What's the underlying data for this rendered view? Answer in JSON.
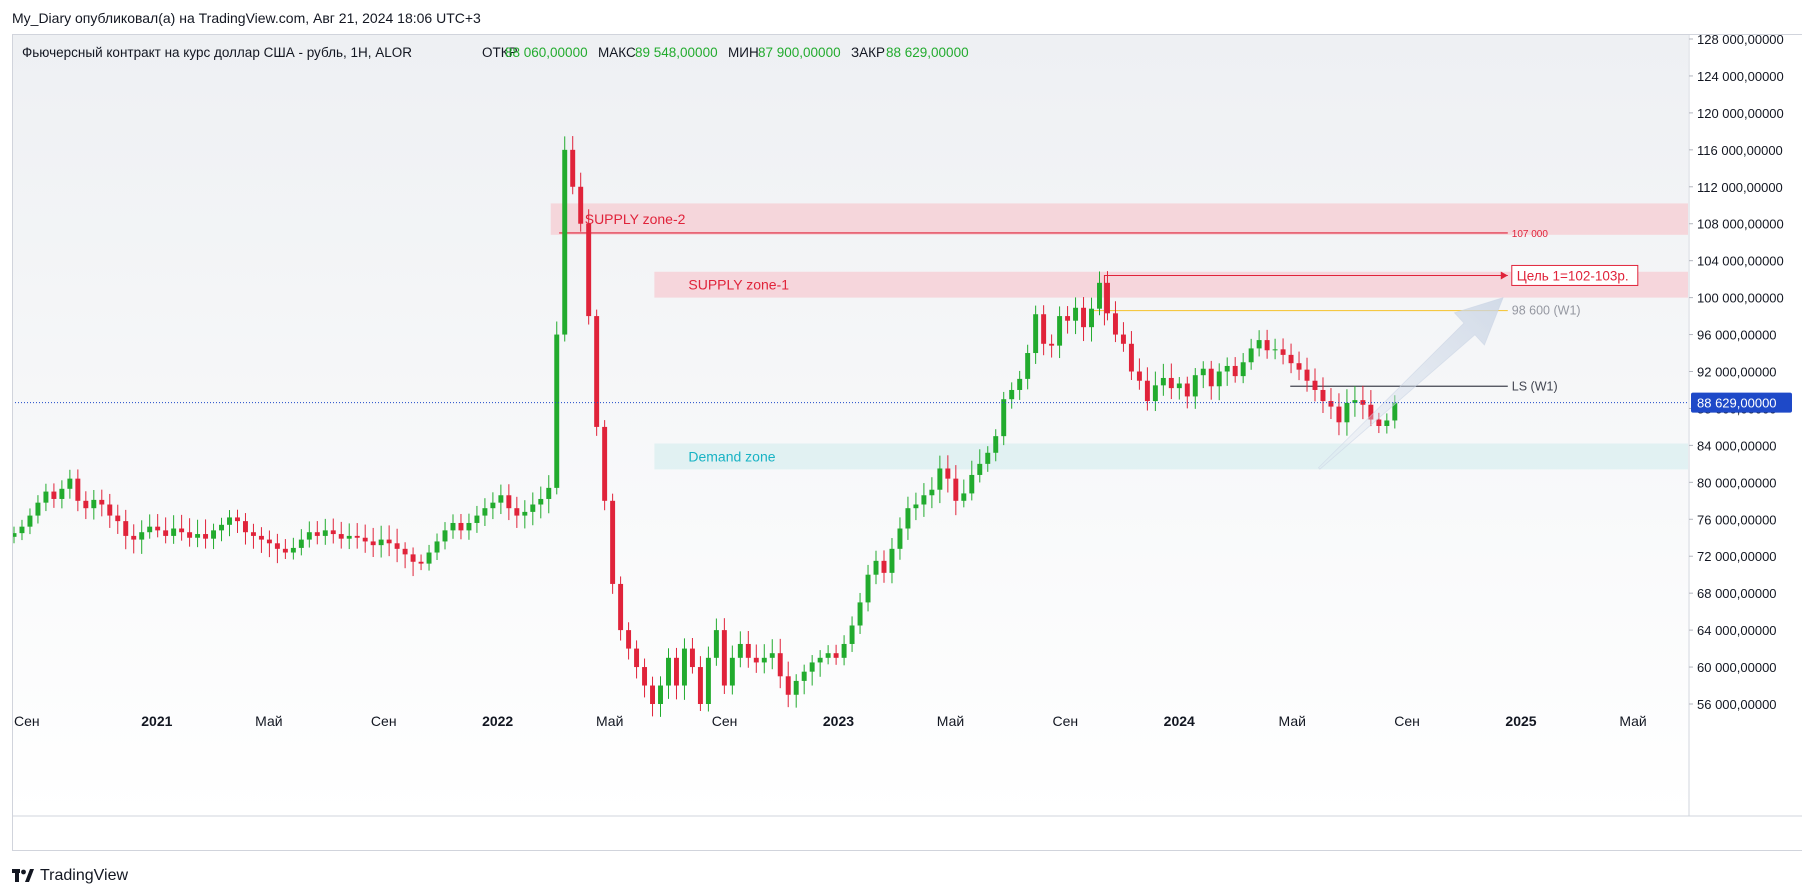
{
  "header": {
    "publisher_line": "My_Diary опубликовал(а) на TradingView.com, Авг 21, 2024 18:06 UTC+3"
  },
  "legend": {
    "symbol_text": "Фьючерсный контракт на курс доллар США - рубль, 1Н, ALOR",
    "open_label": "ОТКР",
    "open_value": "88 060,00000",
    "high_label": "МАКС",
    "high_value": "89 548,00000",
    "low_label": "МИН",
    "low_value": "87 900,00000",
    "close_label": "ЗАКР",
    "close_value": "88 629,00000"
  },
  "colors": {
    "up": "#22ab2e",
    "down": "#e0233a",
    "supply_zone": "#f6c9d0",
    "demand_zone": "#d7eef0",
    "supply_text": "#e0233a",
    "demand_text": "#18b3c4",
    "price_badge": "#1e49c8",
    "w1_line": "#f5c842",
    "ls_line": "#434651"
  },
  "branding": {
    "logo_text": "TradingView",
    "logo_icon": "tradingview-logo-icon"
  },
  "chart_data": {
    "type": "candlestick",
    "title": "",
    "y_axis": {
      "min": 52000,
      "max": 128000,
      "ticks": [
        {
          "v": 128000,
          "label": "128 000,00000"
        },
        {
          "v": 124000,
          "label": "124 000,00000"
        },
        {
          "v": 120000,
          "label": "120 000,00000"
        },
        {
          "v": 116000,
          "label": "116 000,00000"
        },
        {
          "v": 112000,
          "label": "112 000,00000"
        },
        {
          "v": 108000,
          "label": "108 000,00000"
        },
        {
          "v": 104000,
          "label": "104 000,00000"
        },
        {
          "v": 100000,
          "label": "100 000,00000"
        },
        {
          "v": 96000,
          "label": "96 000,00000"
        },
        {
          "v": 92000,
          "label": "92 000,00000"
        },
        {
          "v": 88000,
          "label": "88 000,00000"
        },
        {
          "v": 84000,
          "label": "84 000,00000"
        },
        {
          "v": 80000,
          "label": "80 000,00000"
        },
        {
          "v": 76000,
          "label": "76 000,00000"
        },
        {
          "v": 72000,
          "label": "72 000,00000"
        },
        {
          "v": 68000,
          "label": "68 000,00000"
        },
        {
          "v": 64000,
          "label": "64 000,00000"
        },
        {
          "v": 60000,
          "label": "60 000,00000"
        },
        {
          "v": 56000,
          "label": "56 000,00000"
        }
      ]
    },
    "x_axis": {
      "start": "2020-08-01",
      "end": "2025-07-01",
      "ticks": [
        {
          "date": "2020-09-01",
          "label": "Сен",
          "bold": false
        },
        {
          "date": "2021-01-01",
          "label": "2021",
          "bold": true
        },
        {
          "date": "2021-05-01",
          "label": "Май",
          "bold": false
        },
        {
          "date": "2021-09-01",
          "label": "Сен",
          "bold": false
        },
        {
          "date": "2022-01-01",
          "label": "2022",
          "bold": true
        },
        {
          "date": "2022-05-01",
          "label": "Май",
          "bold": false
        },
        {
          "date": "2022-09-01",
          "label": "Сен",
          "bold": false
        },
        {
          "date": "2023-01-01",
          "label": "2023",
          "bold": true
        },
        {
          "date": "2023-05-01",
          "label": "Май",
          "bold": false
        },
        {
          "date": "2023-09-01",
          "label": "Сен",
          "bold": false
        },
        {
          "date": "2024-01-01",
          "label": "2024",
          "bold": true
        },
        {
          "date": "2024-05-01",
          "label": "Май",
          "bold": false
        },
        {
          "date": "2024-09-01",
          "label": "Сен",
          "bold": false
        },
        {
          "date": "2025-01-01",
          "label": "2025",
          "bold": true
        },
        {
          "date": "2025-05-01",
          "label": "Май",
          "bold": false
        }
      ]
    },
    "current_price": {
      "value": 88629,
      "label": "88 629,00000"
    },
    "closes": [
      74500,
      75200,
      76400,
      77800,
      79000,
      78200,
      79300,
      80400,
      78000,
      77200,
      78100,
      77600,
      76400,
      75800,
      74200,
      73800,
      74600,
      75200,
      74800,
      74200,
      75000,
      74600,
      74000,
      74400,
      73900,
      74800,
      75400,
      76200,
      75800,
      74600,
      74200,
      73800,
      73400,
      72800,
      72400,
      72900,
      73800,
      74600,
      74200,
      74800,
      74400,
      73900,
      74200,
      74000,
      73600,
      73200,
      73800,
      73400,
      72800,
      72200,
      71400,
      71200,
      72400,
      73600,
      74800,
      75600,
      74800,
      75600,
      76400,
      77200,
      77800,
      78600,
      77200,
      76400,
      76800,
      77600,
      78200,
      79400,
      96000,
      116000,
      112000,
      108000,
      98000,
      86000,
      78000,
      69000,
      64000,
      62000,
      60000,
      58000,
      56000,
      58000,
      61000,
      58000,
      62000,
      60000,
      56000,
      61000,
      64000,
      58000,
      61000,
      62500,
      61000,
      60500,
      61000,
      61500,
      59000,
      57000,
      58500,
      59500,
      60500,
      61000,
      61500,
      61000,
      62500,
      64500,
      67000,
      70000,
      71500,
      70200,
      72800,
      75000,
      77200,
      77600,
      78600,
      79200,
      81500,
      80400,
      78000,
      78800,
      80800,
      82000,
      83200,
      85000,
      89000,
      90000,
      91200,
      94000,
      98200,
      95000,
      94800,
      98000,
      97500,
      98900,
      96800,
      98800,
      101600,
      98300,
      96000,
      95000,
      92000,
      91000,
      88800,
      90500,
      91300,
      90200,
      90700,
      89300,
      91600,
      92300,
      90400,
      92000,
      92600,
      91500,
      93000,
      94500,
      95400,
      94300,
      94400,
      93800,
      92900,
      92200,
      91000,
      90000,
      88800,
      88200,
      86500,
      88600,
      88900,
      88400,
      86800,
      86100,
      86700,
      88629
    ],
    "annotations": [
      {
        "kind": "zone",
        "name": "SUPPLY zone-2",
        "label": "SUPPLY zone-2",
        "from": "2022-03-01",
        "to": "2025-07-01",
        "top": 110200,
        "bottom": 106800
      },
      {
        "kind": "zone",
        "name": "SUPPLY zone-1",
        "label": "SUPPLY zone-1",
        "from": "2022-06-20",
        "to": "2025-07-01",
        "top": 102800,
        "bottom": 100000
      },
      {
        "kind": "zone",
        "name": "Demand zone",
        "label": "Demand zone",
        "from": "2022-06-20",
        "to": "2025-07-01",
        "top": 84200,
        "bottom": 81400
      }
    ],
    "levels": [
      {
        "name": "107 000",
        "label": "107 000",
        "value": 107000,
        "from": "2022-03-10",
        "to": "2024-12-20"
      },
      {
        "name": "98 600 (W1)",
        "label": "98 600 (W1)",
        "value": 98600,
        "from": "2023-10-01",
        "to": "2024-12-20"
      },
      {
        "name": "LS (W1)",
        "label": "LS (W1)",
        "value": 90400,
        "from": "2024-05-01",
        "to": "2024-12-20"
      }
    ],
    "target": {
      "label": "Цель 1=102-103р.",
      "value": 102400,
      "from": "2023-10-15",
      "to": "2024-12-20"
    },
    "arrow": {
      "from_date": "2024-06-01",
      "from_value": 81500,
      "to_date": "2024-12-15",
      "to_value": 100000
    }
  }
}
